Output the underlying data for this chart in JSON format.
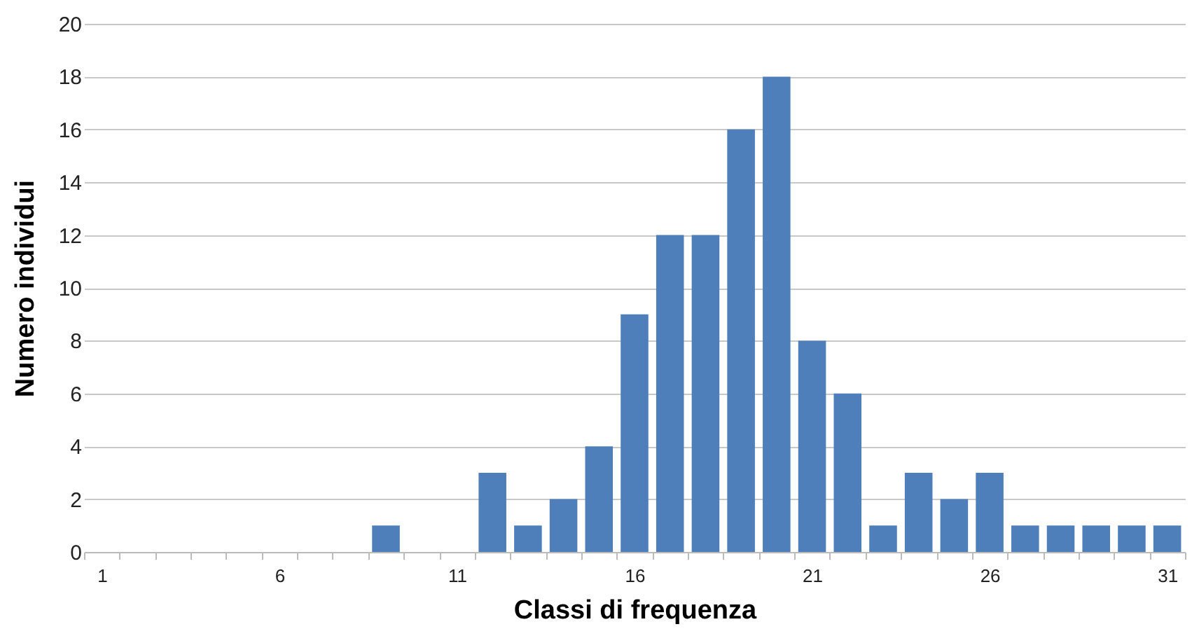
{
  "chart_data": {
    "type": "bar",
    "xlabel": "Classi di frequenza",
    "ylabel": "Numero individui",
    "categories": [
      "1",
      null,
      null,
      null,
      null,
      "6",
      null,
      null,
      null,
      null,
      "11",
      null,
      null,
      null,
      null,
      "16",
      null,
      null,
      null,
      null,
      "21",
      null,
      null,
      null,
      null,
      "26",
      null,
      null,
      null,
      null,
      "31"
    ],
    "values": [
      0,
      0,
      0,
      0,
      0,
      0,
      0,
      0,
      1,
      0,
      0,
      3,
      1,
      2,
      4,
      9,
      12,
      12,
      16,
      18,
      8,
      6,
      1,
      3,
      2,
      3,
      1,
      1,
      1,
      1,
      1
    ],
    "color": "#4f7fba",
    "ylim": [
      0,
      20
    ],
    "yticks": [
      0,
      2,
      4,
      6,
      8,
      10,
      12,
      14,
      16,
      18,
      20
    ],
    "grid": "y"
  }
}
